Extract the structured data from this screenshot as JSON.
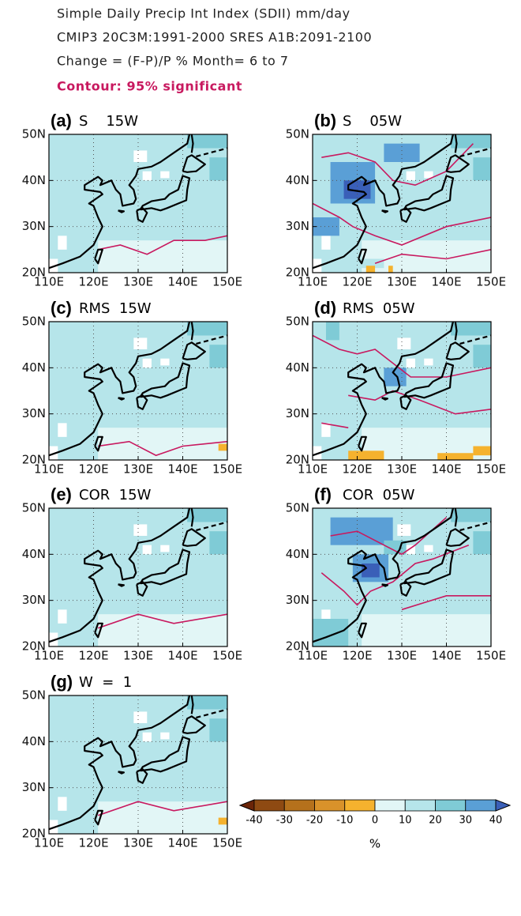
{
  "header": {
    "lines": [
      "Simple Daily Precip Int Index (SDII)   mm/day",
      "CMIP3 20C3M:1991-2000 SRES A1B:2091-2100",
      "Change = (F-P)/P %  Month= 6 to 7"
    ],
    "contour_note": "Contour: 95% significant"
  },
  "panels": [
    {
      "label": "(a)",
      "title": "S    15W"
    },
    {
      "label": "(b)",
      "title": "S    05W"
    },
    {
      "label": "(c)",
      "title": "RMS  15W"
    },
    {
      "label": "(d)",
      "title": "RMS  05W"
    },
    {
      "label": "(e)",
      "title": "COR  15W"
    },
    {
      "label": "(f)",
      "title": "COR  05W"
    },
    {
      "label": "(g)",
      "title": "W  =  1"
    }
  ],
  "axes": {
    "lat_labels": [
      "50N",
      "40N",
      "30N",
      "20N"
    ],
    "lon_labels": [
      "110E",
      "120E",
      "130E",
      "140E",
      "150E"
    ]
  },
  "colorbar": {
    "labels": [
      "-40",
      "-30",
      "-20",
      "-10",
      "0",
      "10",
      "20",
      "30",
      "40"
    ],
    "unit": "%"
  }
}
